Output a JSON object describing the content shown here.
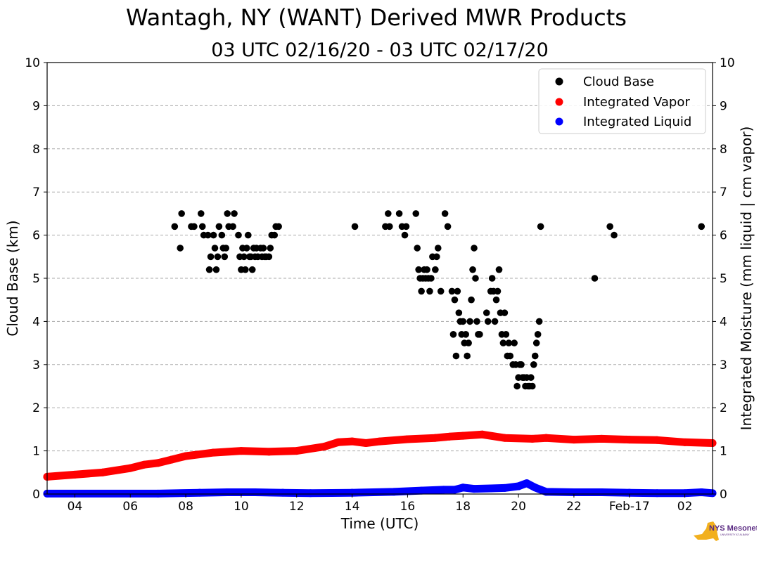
{
  "chart_data": {
    "type": "scatter",
    "title": "Wantagh, NY (WANT) Derived MWR Products",
    "subtitle": "03 UTC 02/16/20 - 03 UTC 02/17/20",
    "xlabel": "Time (UTC)",
    "ylabel_left": "Cloud Base (km)",
    "ylabel_right": "Integrated Moisture (mm liquid | cm vapor)",
    "xlim_hours": [
      3,
      27
    ],
    "ylim": [
      0,
      10
    ],
    "yticks": [
      "0",
      "1",
      "2",
      "3",
      "4",
      "5",
      "6",
      "7",
      "8",
      "9",
      "10"
    ],
    "xticks": [
      {
        "hour": 4,
        "label": "04"
      },
      {
        "hour": 6,
        "label": "06"
      },
      {
        "hour": 8,
        "label": "08"
      },
      {
        "hour": 10,
        "label": "10"
      },
      {
        "hour": 12,
        "label": "12"
      },
      {
        "hour": 14,
        "label": "14"
      },
      {
        "hour": 16,
        "label": "16"
      },
      {
        "hour": 18,
        "label": "18"
      },
      {
        "hour": 20,
        "label": "20"
      },
      {
        "hour": 22,
        "label": "22"
      },
      {
        "hour": 24,
        "label": "Feb-17"
      },
      {
        "hour": 26,
        "label": "02"
      }
    ],
    "grid": "horizontal-dashed",
    "legend_position": "top-right",
    "series": [
      {
        "name": "Cloud Base",
        "color": "#000000",
        "style": "points",
        "points": [
          [
            7.6,
            6.2
          ],
          [
            7.8,
            5.7
          ],
          [
            7.85,
            6.5
          ],
          [
            8.2,
            6.2
          ],
          [
            8.3,
            6.2
          ],
          [
            8.55,
            6.5
          ],
          [
            8.6,
            6.2
          ],
          [
            8.65,
            6.0
          ],
          [
            8.8,
            6.0
          ],
          [
            8.85,
            5.2
          ],
          [
            8.9,
            5.5
          ],
          [
            9.0,
            6.0
          ],
          [
            9.05,
            5.7
          ],
          [
            9.1,
            5.2
          ],
          [
            9.15,
            5.5
          ],
          [
            9.2,
            6.2
          ],
          [
            9.3,
            6.0
          ],
          [
            9.35,
            5.7
          ],
          [
            9.4,
            5.5
          ],
          [
            9.45,
            5.7
          ],
          [
            9.5,
            6.5
          ],
          [
            9.55,
            6.2
          ],
          [
            9.7,
            6.2
          ],
          [
            9.75,
            6.5
          ],
          [
            9.9,
            6.0
          ],
          [
            9.95,
            5.5
          ],
          [
            10.0,
            5.2
          ],
          [
            10.05,
            5.7
          ],
          [
            10.1,
            5.5
          ],
          [
            10.15,
            5.2
          ],
          [
            10.2,
            5.7
          ],
          [
            10.25,
            6.0
          ],
          [
            10.3,
            5.5
          ],
          [
            10.35,
            5.5
          ],
          [
            10.4,
            5.2
          ],
          [
            10.45,
            5.7
          ],
          [
            10.5,
            5.5
          ],
          [
            10.55,
            5.7
          ],
          [
            10.6,
            5.5
          ],
          [
            10.7,
            5.7
          ],
          [
            10.75,
            5.5
          ],
          [
            10.8,
            5.7
          ],
          [
            10.85,
            5.5
          ],
          [
            10.9,
            5.5
          ],
          [
            11.0,
            5.5
          ],
          [
            11.05,
            5.7
          ],
          [
            11.1,
            6.0
          ],
          [
            11.2,
            6.0
          ],
          [
            11.25,
            6.2
          ],
          [
            11.35,
            6.2
          ],
          [
            14.1,
            6.2
          ],
          [
            15.2,
            6.2
          ],
          [
            15.3,
            6.5
          ],
          [
            15.35,
            6.2
          ],
          [
            15.7,
            6.5
          ],
          [
            15.8,
            6.2
          ],
          [
            15.9,
            6.0
          ],
          [
            15.95,
            6.2
          ],
          [
            16.3,
            6.5
          ],
          [
            16.35,
            5.7
          ],
          [
            16.4,
            5.2
          ],
          [
            16.45,
            5.0
          ],
          [
            16.5,
            4.7
          ],
          [
            16.55,
            5.0
          ],
          [
            16.6,
            5.2
          ],
          [
            16.65,
            5.0
          ],
          [
            16.7,
            5.2
          ],
          [
            16.75,
            5.0
          ],
          [
            16.8,
            4.7
          ],
          [
            16.85,
            5.0
          ],
          [
            16.9,
            5.5
          ],
          [
            17.0,
            5.2
          ],
          [
            17.05,
            5.5
          ],
          [
            17.1,
            5.7
          ],
          [
            17.2,
            4.7
          ],
          [
            17.35,
            6.5
          ],
          [
            17.45,
            6.2
          ],
          [
            17.6,
            4.7
          ],
          [
            17.65,
            3.7
          ],
          [
            17.7,
            4.5
          ],
          [
            17.75,
            3.2
          ],
          [
            17.8,
            4.7
          ],
          [
            17.85,
            4.2
          ],
          [
            17.9,
            4.0
          ],
          [
            17.95,
            3.7
          ],
          [
            18.0,
            4.0
          ],
          [
            18.05,
            3.5
          ],
          [
            18.1,
            3.7
          ],
          [
            18.15,
            3.2
          ],
          [
            18.2,
            3.5
          ],
          [
            18.25,
            4.0
          ],
          [
            18.3,
            4.5
          ],
          [
            18.35,
            5.2
          ],
          [
            18.4,
            5.7
          ],
          [
            18.45,
            5.0
          ],
          [
            18.5,
            4.0
          ],
          [
            18.55,
            3.7
          ],
          [
            18.6,
            3.7
          ],
          [
            18.85,
            4.2
          ],
          [
            18.9,
            4.0
          ],
          [
            19.0,
            4.7
          ],
          [
            19.05,
            5.0
          ],
          [
            19.1,
            4.7
          ],
          [
            19.15,
            4.0
          ],
          [
            19.2,
            4.5
          ],
          [
            19.25,
            4.7
          ],
          [
            19.3,
            5.2
          ],
          [
            19.35,
            4.2
          ],
          [
            19.4,
            3.7
          ],
          [
            19.45,
            3.5
          ],
          [
            19.5,
            4.2
          ],
          [
            19.55,
            3.7
          ],
          [
            19.6,
            3.2
          ],
          [
            19.65,
            3.5
          ],
          [
            19.7,
            3.2
          ],
          [
            19.8,
            3.0
          ],
          [
            19.85,
            3.5
          ],
          [
            19.9,
            3.0
          ],
          [
            19.95,
            2.5
          ],
          [
            20.0,
            2.7
          ],
          [
            20.05,
            3.0
          ],
          [
            20.1,
            3.0
          ],
          [
            20.15,
            2.7
          ],
          [
            20.2,
            2.7
          ],
          [
            20.25,
            2.5
          ],
          [
            20.3,
            2.7
          ],
          [
            20.35,
            2.5
          ],
          [
            20.4,
            2.5
          ],
          [
            20.45,
            2.7
          ],
          [
            20.5,
            2.5
          ],
          [
            20.55,
            3.0
          ],
          [
            20.6,
            3.2
          ],
          [
            20.65,
            3.5
          ],
          [
            20.7,
            3.7
          ],
          [
            20.75,
            4.0
          ],
          [
            20.8,
            6.2
          ],
          [
            22.75,
            5.0
          ],
          [
            23.3,
            6.2
          ],
          [
            23.45,
            6.0
          ],
          [
            26.6,
            6.2
          ]
        ]
      },
      {
        "name": "Integrated Vapor",
        "color": "#ff0000",
        "style": "dense",
        "line": [
          [
            3.0,
            0.4
          ],
          [
            4.0,
            0.45
          ],
          [
            5.0,
            0.5
          ],
          [
            6.0,
            0.6
          ],
          [
            6.5,
            0.68
          ],
          [
            7.0,
            0.72
          ],
          [
            7.5,
            0.8
          ],
          [
            8.0,
            0.88
          ],
          [
            9.0,
            0.96
          ],
          [
            10.0,
            1.0
          ],
          [
            11.0,
            0.98
          ],
          [
            12.0,
            1.0
          ],
          [
            13.0,
            1.1
          ],
          [
            13.5,
            1.2
          ],
          [
            14.0,
            1.22
          ],
          [
            14.5,
            1.18
          ],
          [
            15.0,
            1.22
          ],
          [
            16.0,
            1.27
          ],
          [
            17.0,
            1.3
          ],
          [
            17.5,
            1.33
          ],
          [
            18.0,
            1.35
          ],
          [
            18.7,
            1.38
          ],
          [
            19.5,
            1.3
          ],
          [
            20.5,
            1.28
          ],
          [
            21.0,
            1.3
          ],
          [
            22.0,
            1.26
          ],
          [
            23.0,
            1.28
          ],
          [
            24.0,
            1.26
          ],
          [
            25.0,
            1.25
          ],
          [
            26.0,
            1.2
          ],
          [
            27.0,
            1.18
          ]
        ]
      },
      {
        "name": "Integrated Liquid",
        "color": "#0000ff",
        "style": "dense",
        "line": [
          [
            3.0,
            0.01
          ],
          [
            7.0,
            0.01
          ],
          [
            8.5,
            0.03
          ],
          [
            9.5,
            0.04
          ],
          [
            10.5,
            0.04
          ],
          [
            11.5,
            0.03
          ],
          [
            12.5,
            0.02
          ],
          [
            14.0,
            0.03
          ],
          [
            15.5,
            0.05
          ],
          [
            16.5,
            0.08
          ],
          [
            17.3,
            0.1
          ],
          [
            17.7,
            0.1
          ],
          [
            18.0,
            0.15
          ],
          [
            18.4,
            0.12
          ],
          [
            19.0,
            0.13
          ],
          [
            19.5,
            0.14
          ],
          [
            20.0,
            0.18
          ],
          [
            20.3,
            0.25
          ],
          [
            20.6,
            0.15
          ],
          [
            21.0,
            0.05
          ],
          [
            22.0,
            0.04
          ],
          [
            23.0,
            0.04
          ],
          [
            24.0,
            0.03
          ],
          [
            25.0,
            0.02
          ],
          [
            26.0,
            0.02
          ],
          [
            26.6,
            0.04
          ],
          [
            27.0,
            0.02
          ]
        ]
      }
    ]
  },
  "logo": {
    "text_main": "NYS Mesonet",
    "text_sub": "UNIVERSITY AT ALBANY",
    "colors": {
      "state": "#f2b01e",
      "text": "#5a2a82"
    }
  }
}
